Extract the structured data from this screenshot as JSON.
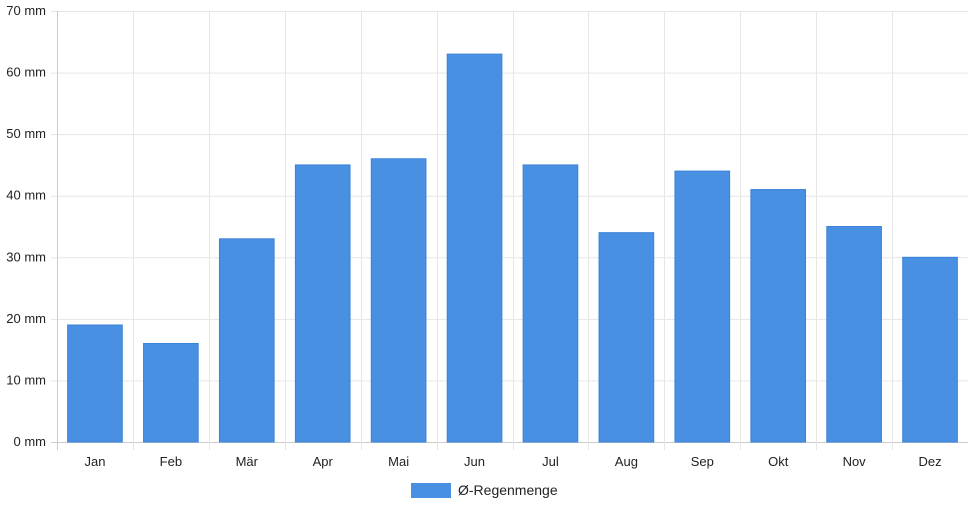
{
  "chart_data": {
    "type": "bar",
    "categories": [
      "Jan",
      "Feb",
      "Mär",
      "Apr",
      "Mai",
      "Jun",
      "Jul",
      "Aug",
      "Sep",
      "Okt",
      "Nov",
      "Dez"
    ],
    "series": [
      {
        "name": "Ø-Regenmenge",
        "values": [
          19,
          16,
          33,
          45,
          46,
          63,
          45,
          34,
          44,
          41,
          35,
          30
        ]
      }
    ],
    "yticks": [
      "0 mm",
      "10 mm",
      "20 mm",
      "30 mm",
      "40 mm",
      "50 mm",
      "60 mm",
      "70 mm"
    ],
    "ylim": [
      0,
      70
    ],
    "grid": true,
    "legend_position": "bottom",
    "colors": {
      "bar": "#4a90e2",
      "grid": "#e6e6e6",
      "axis": "#cccccc"
    }
  }
}
